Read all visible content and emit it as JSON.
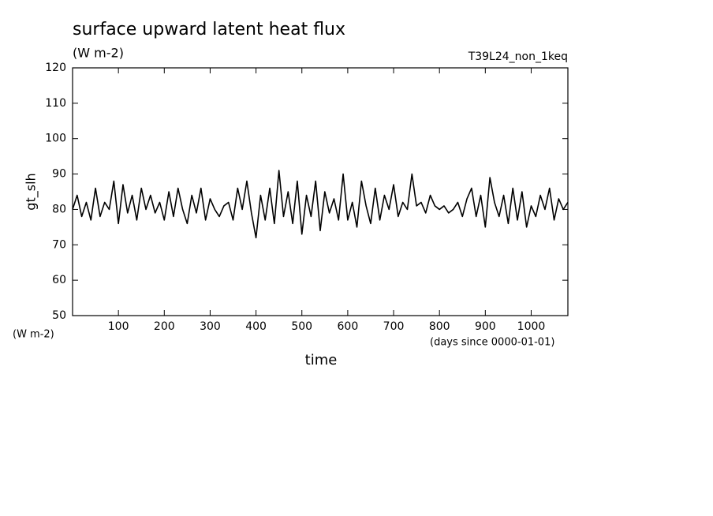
{
  "chart_data": {
    "type": "line",
    "title": "surface upward latent heat flux",
    "subtitle": "(W m-2)",
    "run_label": "T39L24_non_1keq",
    "y_label": "gt_slh",
    "y_unit_label": "(W m-2)",
    "x_unit_label": "(days since 0000-01-01)",
    "x_label": "time",
    "color": "#000000",
    "xlim": [
      0,
      1080
    ],
    "ylim": [
      50,
      120
    ],
    "xticks": [
      100,
      200,
      300,
      400,
      500,
      600,
      700,
      800,
      900,
      1000
    ],
    "yticks": [
      50,
      60,
      70,
      80,
      90,
      100,
      110,
      120
    ],
    "x": [
      0,
      10,
      20,
      30,
      40,
      50,
      60,
      70,
      80,
      90,
      100,
      110,
      120,
      130,
      140,
      150,
      160,
      170,
      180,
      190,
      200,
      210,
      220,
      230,
      240,
      250,
      260,
      270,
      280,
      290,
      300,
      310,
      320,
      330,
      340,
      350,
      360,
      370,
      380,
      390,
      400,
      410,
      420,
      430,
      440,
      450,
      460,
      470,
      480,
      490,
      500,
      510,
      520,
      530,
      540,
      550,
      560,
      570,
      580,
      590,
      600,
      610,
      620,
      630,
      640,
      650,
      660,
      670,
      680,
      690,
      700,
      710,
      720,
      730,
      740,
      750,
      760,
      770,
      780,
      790,
      800,
      810,
      820,
      830,
      840,
      850,
      860,
      870,
      880,
      890,
      900,
      910,
      920,
      930,
      940,
      950,
      960,
      970,
      980,
      990,
      1000,
      1010,
      1020,
      1030,
      1040,
      1050,
      1060,
      1070,
      1080
    ],
    "values": [
      80,
      84,
      78,
      82,
      77,
      86,
      78,
      82,
      80,
      88,
      76,
      87,
      79,
      84,
      77,
      86,
      80,
      84,
      79,
      82,
      77,
      85,
      78,
      86,
      80,
      76,
      84,
      79,
      86,
      77,
      83,
      80,
      78,
      81,
      82,
      77,
      86,
      80,
      88,
      79,
      72,
      84,
      77,
      86,
      76,
      91,
      78,
      85,
      76,
      88,
      73,
      84,
      78,
      88,
      74,
      85,
      79,
      83,
      77,
      90,
      77,
      82,
      75,
      88,
      81,
      76,
      86,
      77,
      84,
      80,
      87,
      78,
      82,
      80,
      90,
      81,
      82,
      79,
      84,
      81,
      80,
      81,
      79,
      80,
      82,
      78,
      83,
      86,
      78,
      84,
      75,
      89,
      82,
      78,
      84,
      76,
      86,
      77,
      85,
      75,
      81,
      78,
      84,
      80,
      86,
      77,
      83,
      80,
      82
    ]
  }
}
